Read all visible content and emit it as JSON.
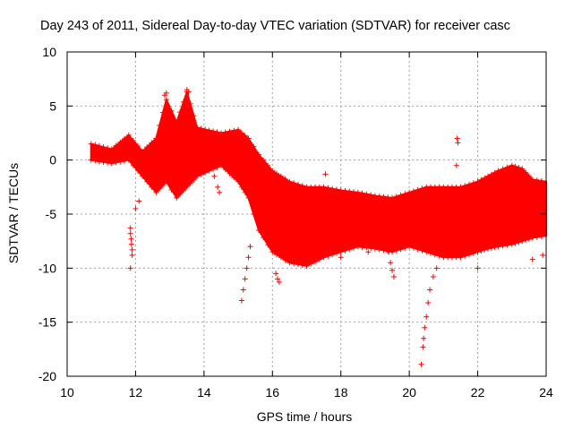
{
  "chart_data": {
    "type": "scatter",
    "title": "Day 243 of 2011, Sidereal Day-to-day VTEC variation (SDTVAR) for receiver casc",
    "xlabel": "GPS time / hours",
    "ylabel": "SDTVAR / TECUs",
    "xlim": [
      10,
      24
    ],
    "ylim": [
      -20,
      10
    ],
    "xticks": [
      "10",
      "12",
      "14",
      "16",
      "18",
      "20",
      "22",
      "24"
    ],
    "yticks": [
      "10",
      "5",
      "0",
      "-5",
      "-10",
      "-15",
      "-20"
    ],
    "grid": true,
    "marker": "+",
    "series_color": "#ff0000",
    "band_upper": [
      [
        10.7,
        1.5
      ],
      [
        11.3,
        1.0
      ],
      [
        11.8,
        2.3
      ],
      [
        12.2,
        0.8
      ],
      [
        12.6,
        2.0
      ],
      [
        12.9,
        5.6
      ],
      [
        13.2,
        3.5
      ],
      [
        13.5,
        6.3
      ],
      [
        13.8,
        3.0
      ],
      [
        14.5,
        2.5
      ],
      [
        15.0,
        2.8
      ],
      [
        15.3,
        2.0
      ],
      [
        15.6,
        0.5
      ],
      [
        16.0,
        -1.0
      ],
      [
        16.5,
        -2.0
      ],
      [
        17.0,
        -2.5
      ],
      [
        17.5,
        -2.5
      ],
      [
        18.0,
        -2.8
      ],
      [
        18.5,
        -3.0
      ],
      [
        19.0,
        -3.3
      ],
      [
        19.5,
        -3.5
      ],
      [
        20.0,
        -3.0
      ],
      [
        20.5,
        -2.5
      ],
      [
        21.0,
        -2.5
      ],
      [
        21.5,
        -2.5
      ],
      [
        22.0,
        -2.0
      ],
      [
        22.3,
        -1.5
      ],
      [
        22.6,
        -1.0
      ],
      [
        23.0,
        -0.5
      ],
      [
        23.3,
        -0.8
      ],
      [
        23.6,
        -1.8
      ],
      [
        24.0,
        -2.0
      ]
    ],
    "band_lower": [
      [
        10.7,
        0.0
      ],
      [
        11.3,
        -0.3
      ],
      [
        11.8,
        0.0
      ],
      [
        12.2,
        -1.5
      ],
      [
        12.6,
        -3.0
      ],
      [
        12.9,
        -2.0
      ],
      [
        13.2,
        -3.5
      ],
      [
        13.5,
        -2.5
      ],
      [
        13.8,
        -1.5
      ],
      [
        14.5,
        -0.5
      ],
      [
        15.0,
        -2.0
      ],
      [
        15.3,
        -3.5
      ],
      [
        15.6,
        -6.5
      ],
      [
        16.0,
        -8.5
      ],
      [
        16.5,
        -9.5
      ],
      [
        17.0,
        -9.8
      ],
      [
        17.5,
        -9.0
      ],
      [
        18.0,
        -8.5
      ],
      [
        18.5,
        -8.0
      ],
      [
        19.0,
        -8.2
      ],
      [
        19.5,
        -8.5
      ],
      [
        20.0,
        -8.0
      ],
      [
        20.5,
        -8.5
      ],
      [
        21.0,
        -9.0
      ],
      [
        21.5,
        -9.0
      ],
      [
        22.0,
        -8.5
      ],
      [
        22.3,
        -8.2
      ],
      [
        22.6,
        -8.0
      ],
      [
        23.0,
        -7.8
      ],
      [
        23.3,
        -7.5
      ],
      [
        23.6,
        -7.2
      ],
      [
        24.0,
        -7.0
      ]
    ],
    "outlier_points": [
      [
        11.85,
        -6.3
      ],
      [
        11.85,
        -6.8
      ],
      [
        11.87,
        -7.3
      ],
      [
        11.88,
        -7.8
      ],
      [
        11.9,
        -8.3
      ],
      [
        11.9,
        -8.8
      ],
      [
        11.85,
        -10.0
      ],
      [
        12.0,
        -4.5
      ],
      [
        12.1,
        -3.8
      ],
      [
        15.1,
        -13.0
      ],
      [
        15.15,
        -12.0
      ],
      [
        15.2,
        -11.0
      ],
      [
        15.25,
        -10.0
      ],
      [
        15.3,
        -9.0
      ],
      [
        15.35,
        -8.0
      ],
      [
        16.1,
        -10.5
      ],
      [
        16.15,
        -11.0
      ],
      [
        16.2,
        -11.3
      ],
      [
        17.55,
        -1.3
      ],
      [
        18.0,
        -9.0
      ],
      [
        18.8,
        -8.5
      ],
      [
        19.4,
        -8.5
      ],
      [
        19.45,
        -9.5
      ],
      [
        19.5,
        -10.2
      ],
      [
        19.55,
        -10.8
      ],
      [
        20.35,
        -18.9
      ],
      [
        20.4,
        -17.3
      ],
      [
        20.42,
        -16.5
      ],
      [
        20.45,
        -15.5
      ],
      [
        20.5,
        -14.5
      ],
      [
        20.55,
        -13.2
      ],
      [
        20.6,
        -12.0
      ],
      [
        20.7,
        -10.8
      ],
      [
        20.8,
        -10.0
      ],
      [
        21.4,
        2.0
      ],
      [
        21.42,
        1.6
      ],
      [
        21.38,
        -0.5
      ],
      [
        21.5,
        -3.0
      ],
      [
        21.6,
        -6.5
      ],
      [
        22.0,
        -10.0
      ],
      [
        23.6,
        -9.2
      ],
      [
        23.9,
        -8.8
      ],
      [
        12.85,
        6.0
      ],
      [
        12.9,
        6.2
      ],
      [
        13.5,
        6.5
      ],
      [
        13.55,
        6.3
      ],
      [
        14.3,
        -1.5
      ],
      [
        14.4,
        -2.5
      ],
      [
        14.45,
        -3.0
      ]
    ]
  }
}
